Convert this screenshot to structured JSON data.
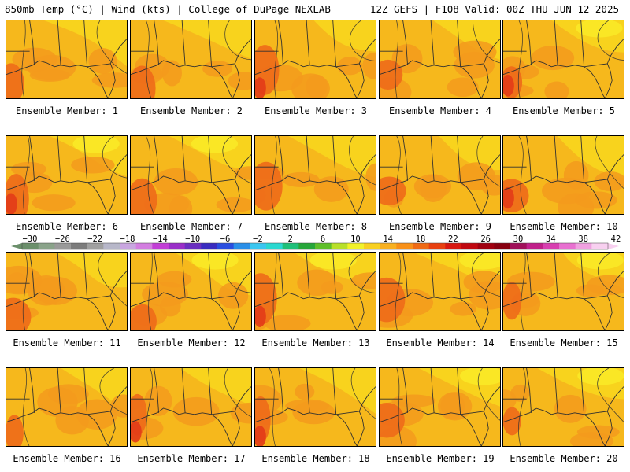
{
  "header": {
    "left": "850mb Temp (°C) | Wind (kts) | College of DuPage NEXLAB",
    "right": "12Z GEFS | F108 Valid: 00Z THU JUN 12 2025"
  },
  "members": [
    "Ensemble Member: 1",
    "Ensemble Member: 2",
    "Ensemble Member: 3",
    "Ensemble Member: 4",
    "Ensemble Member: 5",
    "Ensemble Member: 6",
    "Ensemble Member: 7",
    "Ensemble Member: 8",
    "Ensemble Member: 9",
    "Ensemble Member: 10",
    "Ensemble Member: 11",
    "Ensemble Member: 12",
    "Ensemble Member: 13",
    "Ensemble Member: 14",
    "Ensemble Member: 15",
    "Ensemble Member: 16",
    "Ensemble Member: 17",
    "Ensemble Member: 18",
    "Ensemble Member: 19",
    "Ensemble Member: 20"
  ],
  "colorbar": {
    "labels": [
      "−30",
      "−26",
      "−22",
      "−18",
      "−14",
      "−10",
      "−6",
      "−2",
      "2",
      "6",
      "10",
      "14",
      "18",
      "22",
      "26",
      "30",
      "34",
      "38",
      "42"
    ],
    "colors": [
      "#6b8f6b",
      "#8aa38a",
      "#9a9a9a",
      "#7c7c7c",
      "#a0a0a0",
      "#b7b7c9",
      "#c9a6e0",
      "#d37ee0",
      "#c23fd6",
      "#9a2fc8",
      "#6a2fc0",
      "#3a2cc0",
      "#2a4ee0",
      "#2a8fe8",
      "#3ac6f0",
      "#2ad8d0",
      "#1fc07a",
      "#27a63a",
      "#5fbf2a",
      "#b8e02a",
      "#f2f22a",
      "#f8d020",
      "#f8b020",
      "#f89018",
      "#f06a14",
      "#e84010",
      "#d81810",
      "#c00810",
      "#a00010",
      "#880010",
      "#a0105a",
      "#c0208a",
      "#d840b0",
      "#e870d0",
      "#f0a0e0",
      "#f8d0f0"
    ]
  },
  "map_colors": {
    "base": "#f6b81c",
    "warm": "#f39a1c",
    "hot": "#ee6a1a",
    "hottest": "#e23b18",
    "cool": "#f8d61e",
    "coolest": "#faec28",
    "line": "#303030"
  }
}
